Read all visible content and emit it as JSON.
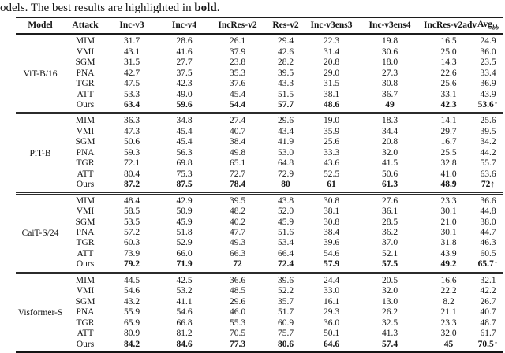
{
  "caption": {
    "text_before_bold": "odels. The best results are highlighted in ",
    "bold_word": "bold",
    "text_after_bold": "."
  },
  "table": {
    "columns": [
      {
        "label": "Model",
        "sub": ""
      },
      {
        "label": "Attack",
        "sub": ""
      },
      {
        "label": "Inc-v3",
        "sub": ""
      },
      {
        "label": "Inc-v4",
        "sub": ""
      },
      {
        "label": "IncRes-v2",
        "sub": ""
      },
      {
        "label": "Res-v2",
        "sub": ""
      },
      {
        "label": "Inc-v3ens3",
        "sub": ""
      },
      {
        "label": "Inc-v3ens4",
        "sub": ""
      },
      {
        "label": "IncRes-v2adv",
        "sub": ""
      },
      {
        "label": "Avg",
        "sub": "bb"
      }
    ],
    "groups": [
      {
        "model": "ViT-B/16",
        "rows": [
          {
            "attack": "MIM",
            "bold": false,
            "values": [
              "31.7",
              "28.6",
              "26.1",
              "29.4",
              "22.3",
              "19.8",
              "16.5",
              "24.9"
            ]
          },
          {
            "attack": "VMI",
            "bold": false,
            "values": [
              "43.1",
              "41.6",
              "37.9",
              "42.6",
              "31.4",
              "30.6",
              "25.0",
              "36.0"
            ]
          },
          {
            "attack": "SGM",
            "bold": false,
            "values": [
              "31.5",
              "27.7",
              "23.8",
              "28.2",
              "20.8",
              "18.0",
              "14.3",
              "23.5"
            ]
          },
          {
            "attack": "PNA",
            "bold": false,
            "values": [
              "42.7",
              "37.5",
              "35.3",
              "39.5",
              "29.0",
              "27.3",
              "22.6",
              "33.4"
            ]
          },
          {
            "attack": "TGR",
            "bold": false,
            "values": [
              "47.5",
              "42.3",
              "37.6",
              "43.3",
              "31.5",
              "30.8",
              "25.6",
              "36.9"
            ]
          },
          {
            "attack": "ATT",
            "bold": false,
            "values": [
              "53.3",
              "49.0",
              "45.4",
              "51.5",
              "38.1",
              "36.7",
              "33.1",
              "43.9"
            ]
          },
          {
            "attack": "Ours",
            "bold": true,
            "values": [
              "63.4",
              "59.6",
              "54.4",
              "57.7",
              "48.6",
              "49",
              "42.3",
              "53.6↑"
            ]
          }
        ]
      },
      {
        "model": "PiT-B",
        "rows": [
          {
            "attack": "MIM",
            "bold": false,
            "values": [
              "36.3",
              "34.8",
              "27.4",
              "29.6",
              "19.0",
              "18.3",
              "14.1",
              "25.6"
            ]
          },
          {
            "attack": "VMI",
            "bold": false,
            "values": [
              "47.3",
              "45.4",
              "40.7",
              "43.4",
              "35.9",
              "34.4",
              "29.7",
              "39.5"
            ]
          },
          {
            "attack": "SGM",
            "bold": false,
            "values": [
              "50.6",
              "45.4",
              "38.4",
              "41.9",
              "25.6",
              "20.8",
              "16.7",
              "34.2"
            ]
          },
          {
            "attack": "PNA",
            "bold": false,
            "values": [
              "59.3",
              "56.3",
              "49.8",
              "53.0",
              "33.3",
              "32.0",
              "25.5",
              "44.2"
            ]
          },
          {
            "attack": "TGR",
            "bold": false,
            "values": [
              "72.1",
              "69.8",
              "65.1",
              "64.8",
              "43.6",
              "41.5",
              "32.8",
              "55.7"
            ]
          },
          {
            "attack": "ATT",
            "bold": false,
            "values": [
              "80.4",
              "75.3",
              "72.7",
              "72.9",
              "52.5",
              "50.6",
              "41.0",
              "63.6"
            ]
          },
          {
            "attack": "Ours",
            "bold": true,
            "values": [
              "87.2",
              "87.5",
              "78.4",
              "80",
              "61",
              "61.3",
              "48.9",
              "72↑"
            ]
          }
        ]
      },
      {
        "model": "CaiT-S/24",
        "rows": [
          {
            "attack": "MIM",
            "bold": false,
            "values": [
              "48.4",
              "42.9",
              "39.5",
              "43.8",
              "30.8",
              "27.6",
              "23.3",
              "36.6"
            ]
          },
          {
            "attack": "VMI",
            "bold": false,
            "values": [
              "58.5",
              "50.9",
              "48.2",
              "52.0",
              "38.1",
              "36.1",
              "30.1",
              "44.8"
            ]
          },
          {
            "attack": "SGM",
            "bold": false,
            "values": [
              "53.5",
              "45.9",
              "40.2",
              "45.9",
              "30.8",
              "28.5",
              "21.0",
              "38.0"
            ]
          },
          {
            "attack": "PNA",
            "bold": false,
            "values": [
              "57.2",
              "51.8",
              "47.7",
              "51.6",
              "38.4",
              "36.2",
              "30.1",
              "44.7"
            ]
          },
          {
            "attack": "TGR",
            "bold": false,
            "values": [
              "60.3",
              "52.9",
              "49.3",
              "53.4",
              "39.6",
              "37.0",
              "31.8",
              "46.3"
            ]
          },
          {
            "attack": "ATT",
            "bold": false,
            "values": [
              "73.9",
              "66.0",
              "66.3",
              "66.4",
              "54.6",
              "52.1",
              "43.9",
              "60.5"
            ]
          },
          {
            "attack": "Ours",
            "bold": true,
            "values": [
              "79.2",
              "71.9",
              "72",
              "72.4",
              "57.9",
              "57.5",
              "49.2",
              "65.7↑"
            ]
          }
        ]
      },
      {
        "model": "Visformer-S",
        "rows": [
          {
            "attack": "MIM",
            "bold": false,
            "values": [
              "44.5",
              "42.5",
              "36.6",
              "39.6",
              "24.4",
              "20.5",
              "16.6",
              "32.1"
            ]
          },
          {
            "attack": "VMI",
            "bold": false,
            "values": [
              "54.6",
              "53.2",
              "48.5",
              "52.2",
              "33.0",
              "32.0",
              "22.2",
              "42.2"
            ]
          },
          {
            "attack": "SGM",
            "bold": false,
            "values": [
              "43.2",
              "41.1",
              "29.6",
              "35.7",
              "16.1",
              "13.0",
              "8.2",
              "26.7"
            ]
          },
          {
            "attack": "PNA",
            "bold": false,
            "values": [
              "55.9",
              "54.6",
              "46.0",
              "51.7",
              "29.3",
              "26.2",
              "21.1",
              "40.7"
            ]
          },
          {
            "attack": "TGR",
            "bold": false,
            "values": [
              "65.9",
              "66.8",
              "55.3",
              "60.9",
              "36.0",
              "32.5",
              "23.3",
              "48.7"
            ]
          },
          {
            "attack": "ATT",
            "bold": false,
            "values": [
              "80.9",
              "81.2",
              "70.5",
              "75.7",
              "50.1",
              "41.3",
              "32.0",
              "61.7"
            ]
          },
          {
            "attack": "Ours",
            "bold": true,
            "values": [
              "84.2",
              "84.6",
              "77.3",
              "80.6",
              "64.6",
              "57.4",
              "45",
              "70.5↑"
            ]
          }
        ]
      }
    ]
  }
}
